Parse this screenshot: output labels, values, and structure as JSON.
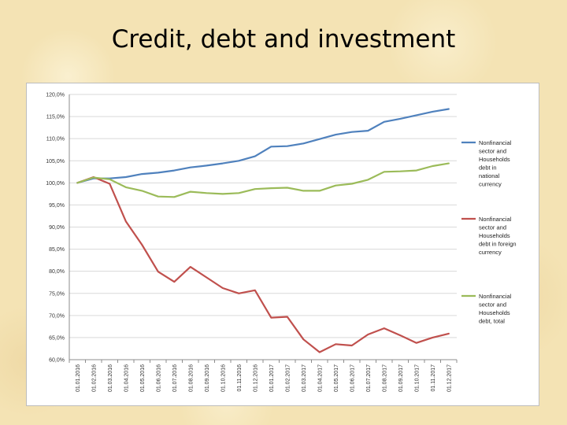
{
  "slide": {
    "title": "Credit, debt and investment"
  },
  "chart_data": {
    "type": "line",
    "title": "",
    "xlabel": "",
    "ylabel": "",
    "ylim": [
      60,
      120
    ],
    "y_ticks": [
      "60,0%",
      "65,0%",
      "70,0%",
      "75,0%",
      "80,0%",
      "85,0%",
      "90,0%",
      "95,0%",
      "100,0%",
      "105,0%",
      "110,0%",
      "115,0%",
      "120,0%"
    ],
    "categories": [
      "01.01.2016",
      "01.02.2016",
      "01.03.2016",
      "01.04.2016",
      "01.05.2016",
      "01.06.2016",
      "01.07.2016",
      "01.08.2016",
      "01.09.2016",
      "01.10.2016",
      "01.11.2016",
      "01.12.2016",
      "01.01.2017",
      "01.02.2017",
      "01.03.2017",
      "01.04.2017",
      "01.05.2017",
      "01.06.2017",
      "01.07.2017",
      "01.08.2017",
      "01.09.2017",
      "01.10.2017",
      "01.11.2017",
      "01.12.2017"
    ],
    "grid": true,
    "legend_position": "right",
    "series": [
      {
        "name": "Nonfinancial sector and Households debt in national currency",
        "legend_lines": [
          "Nonfinancial",
          "sector and",
          "Households",
          "debt in",
          "national",
          "currency"
        ],
        "color": "#4f81bd",
        "values": [
          100.0,
          101.0,
          101.0,
          101.3,
          102.0,
          102.3,
          102.8,
          103.5,
          103.9,
          104.4,
          105.0,
          106.0,
          108.2,
          108.3,
          108.9,
          109.9,
          110.9,
          111.5,
          111.8,
          113.8,
          114.5,
          115.3,
          116.1,
          116.7
        ]
      },
      {
        "name": "Nonfinancial sector and Households debt in foreign currency",
        "legend_lines": [
          "Nonfinancial",
          "sector and",
          "Households",
          "debt in foreign",
          "currency"
        ],
        "color": "#c0504d",
        "values": [
          100.0,
          101.3,
          99.8,
          91.3,
          86.0,
          79.9,
          77.6,
          81.0,
          78.6,
          76.2,
          75.0,
          75.7,
          69.5,
          69.7,
          64.6,
          61.7,
          63.5,
          63.2,
          65.7,
          67.1,
          65.5,
          63.8,
          65.0,
          65.9
        ]
      },
      {
        "name": "Nonfinancial sector and Households debt, total",
        "legend_lines": [
          "Nonfinancial",
          "sector and",
          "Households",
          "debt, total"
        ],
        "color": "#9bbb59",
        "values": [
          100.0,
          101.2,
          100.8,
          99.0,
          98.2,
          96.9,
          96.8,
          98.0,
          97.7,
          97.5,
          97.7,
          98.6,
          98.8,
          98.9,
          98.2,
          98.2,
          99.4,
          99.8,
          100.7,
          102.5,
          102.6,
          102.8,
          103.8,
          104.4
        ]
      }
    ]
  }
}
